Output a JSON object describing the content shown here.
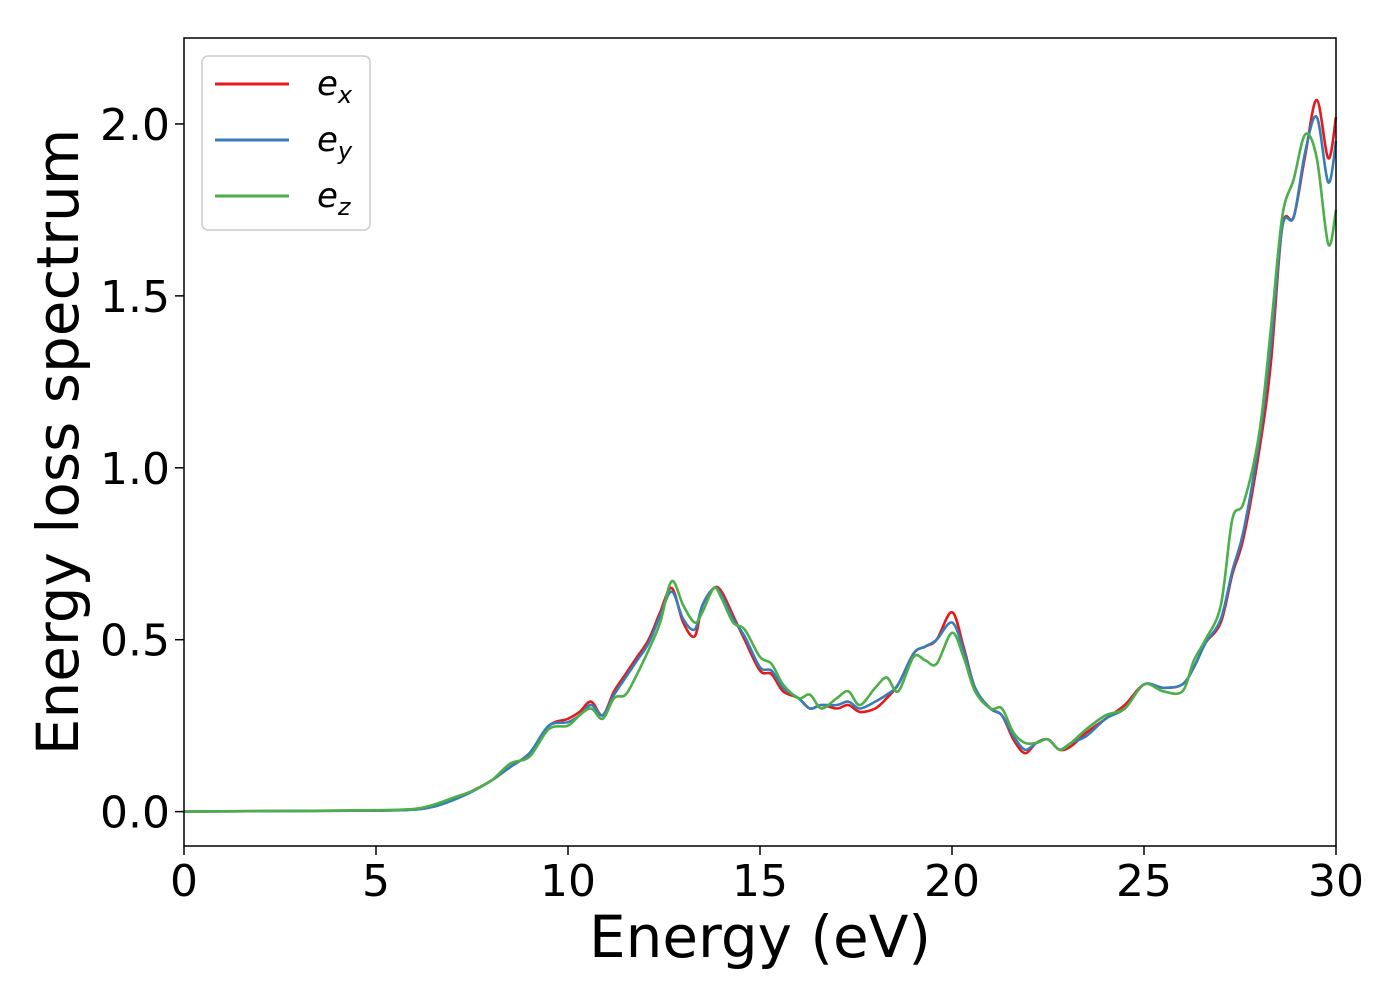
{
  "chart_data": {
    "type": "line",
    "title": "",
    "xlabel": "Energy (eV)",
    "ylabel": "Energy loss spectrum",
    "xlim": [
      0,
      30
    ],
    "ylim": [
      -0.1,
      2.25
    ],
    "xticks": [
      0,
      5,
      10,
      15,
      20,
      25,
      30
    ],
    "xtick_labels": [
      "0",
      "5",
      "10",
      "15",
      "20",
      "25",
      "30"
    ],
    "yticks": [
      0.0,
      0.5,
      1.0,
      1.5,
      2.0
    ],
    "ytick_labels": [
      "0.0",
      "0.5",
      "1.0",
      "1.5",
      "2.0"
    ],
    "grid": false,
    "legend_position": "top-left",
    "series": [
      {
        "name": "e_x",
        "label_base": "e",
        "label_sub": "x",
        "color": "#e41a1c",
        "x": [
          0,
          3,
          5,
          6,
          6.5,
          7,
          7.5,
          8,
          8.5,
          9,
          9.5,
          10,
          10.3,
          10.6,
          10.9,
          11.2,
          11.5,
          11.8,
          12.1,
          12.4,
          12.7,
          13,
          13.3,
          13.5,
          13.8,
          14,
          14.3,
          14.6,
          15,
          15.3,
          15.6,
          16,
          16.3,
          16.6,
          17,
          17.3,
          17.6,
          18,
          18.3,
          18.6,
          19,
          19.3,
          19.6,
          20,
          20.3,
          20.6,
          21,
          21.3,
          21.6,
          21.9,
          22.2,
          22.5,
          22.8,
          23.1,
          23.5,
          24,
          24.5,
          25,
          25.5,
          26,
          26.3,
          26.6,
          27,
          27.3,
          27.6,
          28,
          28.3,
          28.6,
          28.9,
          29.2,
          29.5,
          29.8,
          30
        ],
        "y": [
          0,
          0.002,
          0.003,
          0.006,
          0.015,
          0.035,
          0.06,
          0.09,
          0.13,
          0.17,
          0.25,
          0.27,
          0.29,
          0.32,
          0.28,
          0.35,
          0.4,
          0.45,
          0.5,
          0.58,
          0.65,
          0.55,
          0.51,
          0.6,
          0.65,
          0.64,
          0.57,
          0.5,
          0.41,
          0.4,
          0.35,
          0.33,
          0.3,
          0.31,
          0.3,
          0.31,
          0.29,
          0.3,
          0.33,
          0.37,
          0.46,
          0.48,
          0.5,
          0.58,
          0.48,
          0.36,
          0.3,
          0.28,
          0.21,
          0.17,
          0.2,
          0.21,
          0.18,
          0.19,
          0.23,
          0.27,
          0.31,
          0.37,
          0.36,
          0.37,
          0.42,
          0.49,
          0.55,
          0.69,
          0.8,
          1.05,
          1.3,
          1.7,
          1.73,
          1.91,
          2.07,
          1.9,
          2.02
        ]
      },
      {
        "name": "e_y",
        "label_base": "e",
        "label_sub": "y",
        "color": "#377eb8",
        "x": [
          0,
          3,
          5,
          6,
          6.5,
          7,
          7.5,
          8,
          8.5,
          9,
          9.5,
          10,
          10.3,
          10.6,
          10.9,
          11.2,
          11.5,
          11.8,
          12.1,
          12.4,
          12.7,
          13,
          13.3,
          13.5,
          13.8,
          14,
          14.3,
          14.6,
          15,
          15.3,
          15.6,
          16,
          16.3,
          16.6,
          17,
          17.3,
          17.6,
          18,
          18.3,
          18.6,
          19,
          19.3,
          19.6,
          20,
          20.3,
          20.6,
          21,
          21.3,
          21.6,
          21.9,
          22.2,
          22.5,
          22.8,
          23.1,
          23.5,
          24,
          24.5,
          25,
          25.5,
          26,
          26.3,
          26.6,
          27,
          27.3,
          27.6,
          28,
          28.3,
          28.6,
          28.9,
          29.2,
          29.5,
          29.8,
          30
        ],
        "y": [
          0,
          0.002,
          0.003,
          0.006,
          0.014,
          0.033,
          0.058,
          0.09,
          0.13,
          0.17,
          0.25,
          0.26,
          0.28,
          0.31,
          0.28,
          0.34,
          0.39,
          0.44,
          0.49,
          0.57,
          0.64,
          0.56,
          0.53,
          0.6,
          0.65,
          0.63,
          0.56,
          0.51,
          0.42,
          0.41,
          0.36,
          0.33,
          0.3,
          0.31,
          0.31,
          0.32,
          0.3,
          0.32,
          0.34,
          0.37,
          0.46,
          0.48,
          0.5,
          0.55,
          0.47,
          0.36,
          0.3,
          0.28,
          0.22,
          0.18,
          0.2,
          0.21,
          0.18,
          0.2,
          0.22,
          0.27,
          0.3,
          0.37,
          0.36,
          0.37,
          0.42,
          0.49,
          0.56,
          0.7,
          0.82,
          1.08,
          1.35,
          1.7,
          1.73,
          1.92,
          2.02,
          1.83,
          1.95
        ]
      },
      {
        "name": "e_z",
        "label_base": "e",
        "label_sub": "z",
        "color": "#4daf4a",
        "x": [
          0,
          3,
          5,
          6,
          6.5,
          7,
          7.5,
          8,
          8.5,
          9,
          9.5,
          10,
          10.3,
          10.6,
          10.9,
          11.2,
          11.5,
          11.8,
          12.1,
          12.4,
          12.7,
          13,
          13.3,
          13.5,
          13.8,
          14,
          14.3,
          14.6,
          15,
          15.3,
          15.6,
          16,
          16.3,
          16.6,
          17,
          17.3,
          17.6,
          18,
          18.3,
          18.6,
          19,
          19.3,
          19.6,
          20,
          20.3,
          20.6,
          21,
          21.3,
          21.6,
          21.9,
          22.2,
          22.5,
          22.8,
          23.1,
          23.5,
          24,
          24.5,
          25,
          25.5,
          26,
          26.3,
          26.6,
          27,
          27.3,
          27.6,
          28,
          28.3,
          28.6,
          28.9,
          29.2,
          29.5,
          29.8,
          30
        ],
        "y": [
          0,
          0.002,
          0.004,
          0.008,
          0.02,
          0.04,
          0.06,
          0.09,
          0.14,
          0.16,
          0.24,
          0.25,
          0.28,
          0.3,
          0.27,
          0.33,
          0.34,
          0.4,
          0.47,
          0.55,
          0.67,
          0.6,
          0.55,
          0.58,
          0.65,
          0.62,
          0.55,
          0.53,
          0.45,
          0.43,
          0.37,
          0.33,
          0.34,
          0.3,
          0.33,
          0.35,
          0.31,
          0.36,
          0.39,
          0.35,
          0.45,
          0.44,
          0.43,
          0.52,
          0.45,
          0.35,
          0.3,
          0.3,
          0.23,
          0.2,
          0.2,
          0.21,
          0.18,
          0.2,
          0.24,
          0.28,
          0.3,
          0.37,
          0.35,
          0.35,
          0.44,
          0.5,
          0.6,
          0.85,
          0.9,
          1.1,
          1.4,
          1.73,
          1.84,
          1.97,
          1.9,
          1.65,
          1.75
        ]
      }
    ]
  }
}
